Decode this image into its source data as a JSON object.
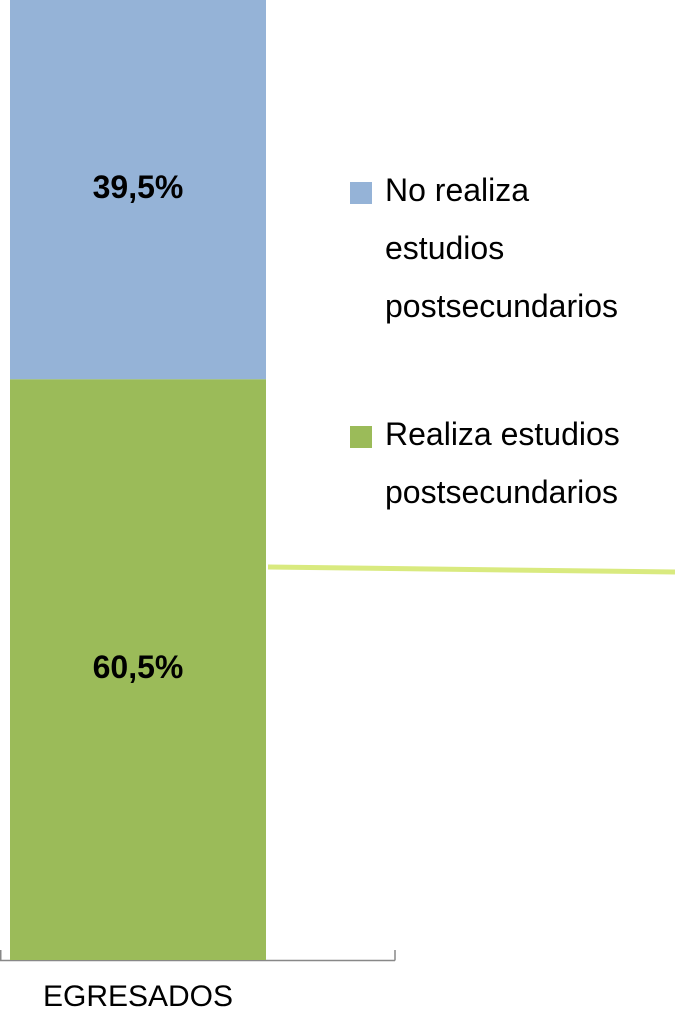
{
  "chart_data": {
    "type": "stacked_bar",
    "categories": [
      "EGRESADOS"
    ],
    "ylim": [
      0,
      100
    ],
    "legend": "right",
    "series": [
      {
        "name": "Realiza estudios postsecundarios",
        "color": "#9bbb59",
        "values": [
          60.5
        ],
        "value_labels": [
          "60,5%"
        ]
      },
      {
        "name": "No realiza estudios postsecundarios",
        "color": "#95b3d7",
        "values": [
          39.5
        ],
        "value_labels": [
          "39,5%"
        ]
      }
    ]
  }
}
